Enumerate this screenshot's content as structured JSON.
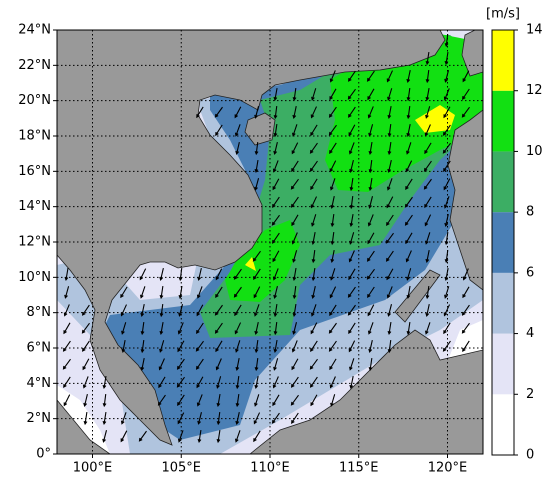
{
  "map": {
    "lonlim": [
      98,
      122
    ],
    "latlim": [
      0,
      24
    ],
    "lon_ticks": [
      {
        "value": 100,
        "label": "100°E"
      },
      {
        "value": 105,
        "label": "105°E"
      },
      {
        "value": 110,
        "label": "110°E"
      },
      {
        "value": 115,
        "label": "115°E"
      },
      {
        "value": 120,
        "label": "120°E"
      }
    ],
    "lat_ticks": [
      {
        "value": 0,
        "label": "0°"
      },
      {
        "value": 2,
        "label": "2°N"
      },
      {
        "value": 4,
        "label": "4°N"
      },
      {
        "value": 6,
        "label": "6°N"
      },
      {
        "value": 8,
        "label": "8°N"
      },
      {
        "value": 10,
        "label": "10°N"
      },
      {
        "value": 12,
        "label": "12°N"
      },
      {
        "value": 14,
        "label": "14°N"
      },
      {
        "value": 16,
        "label": "16°N"
      },
      {
        "value": 18,
        "label": "18°N"
      },
      {
        "value": 20,
        "label": "20°N"
      },
      {
        "value": 22,
        "label": "22°N"
      },
      {
        "value": 24,
        "label": "24°N"
      }
    ],
    "grid": true,
    "colorbar": {
      "unit": "[m/s]",
      "ticks": [
        0,
        2,
        4,
        6,
        8,
        10,
        12,
        14
      ],
      "colors": [
        "#ffffff",
        "#e4e4f6",
        "#b0c4de",
        "#4a7fb5",
        "#3cae64",
        "#12e012",
        "#ffff00"
      ]
    }
  }
}
